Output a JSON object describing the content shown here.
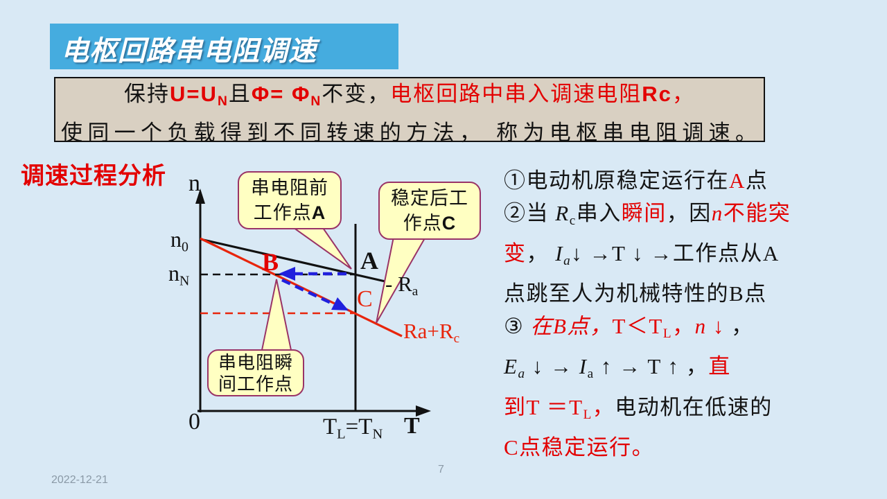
{
  "slide": {
    "title": "电枢回路串电阻调速"
  },
  "colors": {
    "background": "#d9e9f5",
    "banner_blue": "#45acdf",
    "definition_box_tan": "#d9d0c2",
    "accent_red": "#e30000",
    "line_red": "#e8250c",
    "arrow_blue": "#2020dd",
    "callout_fill": "#ffffc2",
    "callout_border": "#993366",
    "footer_gray": "#8a99a6"
  },
  "definition_box": {
    "line1": [
      {
        "t": "保持"
      },
      {
        "t": "U=U",
        "s": "red bold sans"
      },
      {
        "t": "N",
        "s": "red bold sans sub"
      },
      {
        "t": "且"
      },
      {
        "t": "Φ= Φ",
        "s": "red bold sans"
      },
      {
        "t": "N",
        "s": "red bold sans sub"
      },
      {
        "t": "不变，"
      },
      {
        "t": "电枢回路中串入调速电阻",
        "s": "red"
      },
      {
        "t": "Rc",
        "s": "red bold sans"
      },
      {
        "t": "，",
        "s": "red"
      }
    ],
    "line2": [
      {
        "t": "使同一个负载得到不同转速的方法， 称为电枢串电阻调速。"
      }
    ]
  },
  "analysis_label": "调速过程分析",
  "graph": {
    "axis": {
      "y_label": [
        {
          "t": "n"
        }
      ],
      "n0": [
        {
          "t": "n"
        },
        {
          "t": "0",
          "s": "sub"
        }
      ],
      "nN": [
        {
          "t": "n"
        },
        {
          "t": "N",
          "s": "sub"
        }
      ],
      "origin": [
        {
          "t": "0"
        }
      ],
      "x_tick": [
        {
          "t": "T"
        },
        {
          "t": "L",
          "s": "sub"
        },
        {
          "t": "="
        },
        {
          "t": "T"
        },
        {
          "t": "N",
          "s": "sub"
        }
      ],
      "x_label": [
        {
          "t": "T"
        }
      ]
    },
    "points": {
      "A": [
        {
          "t": "A"
        }
      ],
      "B": [
        {
          "t": "B"
        }
      ],
      "C": [
        {
          "t": "C"
        }
      ]
    },
    "line_labels": {
      "ra": [
        {
          "t": "- R"
        },
        {
          "t": "a",
          "s": "sub"
        }
      ],
      "ra_rc": [
        {
          "t": "Ra+R"
        },
        {
          "t": "c",
          "s": "sub"
        }
      ]
    },
    "callouts": [
      {
        "lines": [
          [
            {
              "t": "串电阻前"
            }
          ],
          [
            {
              "t": "工作点"
            },
            {
              "t": "A",
              "s": "bold sans"
            }
          ]
        ]
      },
      {
        "lines": [
          [
            {
              "t": "稳定后工"
            }
          ],
          [
            {
              "t": "作点"
            },
            {
              "t": "C",
              "s": "bold sans"
            }
          ]
        ]
      },
      {
        "lines": [
          [
            {
              "t": "串电阻瞬"
            }
          ],
          [
            {
              "t": "间工作点"
            }
          ]
        ]
      }
    ]
  },
  "process": {
    "lines": [
      [
        {
          "t": "①电动机原稳定运行在"
        },
        {
          "t": "A",
          "s": "red"
        },
        {
          "t": "点"
        }
      ],
      [
        {
          "t": "②当 "
        },
        {
          "t": "R",
          "s": "italic"
        },
        {
          "t": "c",
          "s": "sub"
        },
        {
          "t": "串入"
        },
        {
          "t": "瞬间",
          "s": "red"
        },
        {
          "t": "，因"
        },
        {
          "t": "n",
          "s": "red italic"
        },
        {
          "t": "不能突",
          "s": "red"
        }
      ],
      [
        {
          "t": "变",
          "s": "red"
        },
        {
          "t": "， "
        },
        {
          "t": "I",
          "s": "italic"
        },
        {
          "t": "a",
          "s": "sub italic"
        },
        {
          "t": "↓ →T ↓ →工作点从A"
        }
      ],
      [
        {
          "t": "点跳至人为机械特性的B点"
        }
      ],
      [
        {
          "t": "③ "
        },
        {
          "t": "在B点，",
          "s": "red italic"
        },
        {
          "t": "T＜T",
          "s": "red"
        },
        {
          "t": "L",
          "s": "red sub"
        },
        {
          "t": "，",
          "s": "red"
        },
        {
          "t": "n",
          "s": "red italic"
        },
        {
          "t": " ↓ ",
          "s": "red"
        },
        {
          "t": "，"
        }
      ],
      [
        {
          "t": "E",
          "s": "italic"
        },
        {
          "t": "a",
          "s": "sub italic"
        },
        {
          "t": " ↓ → "
        },
        {
          "t": "I",
          "s": "italic"
        },
        {
          "t": "a",
          "s": "sub"
        },
        {
          "t": " ↑ → T ↑ ，"
        },
        {
          "t": "直",
          "s": "red"
        }
      ],
      [
        {
          "t": "到T ＝T",
          "s": "red"
        },
        {
          "t": "L",
          "s": "red sub"
        },
        {
          "t": "，",
          "s": "red"
        },
        {
          "t": "电动机在低速的"
        }
      ],
      [
        {
          "t": "C点稳定运行。",
          "s": "red"
        }
      ]
    ]
  },
  "footer": {
    "date": "2022-12-21",
    "page": "7"
  }
}
